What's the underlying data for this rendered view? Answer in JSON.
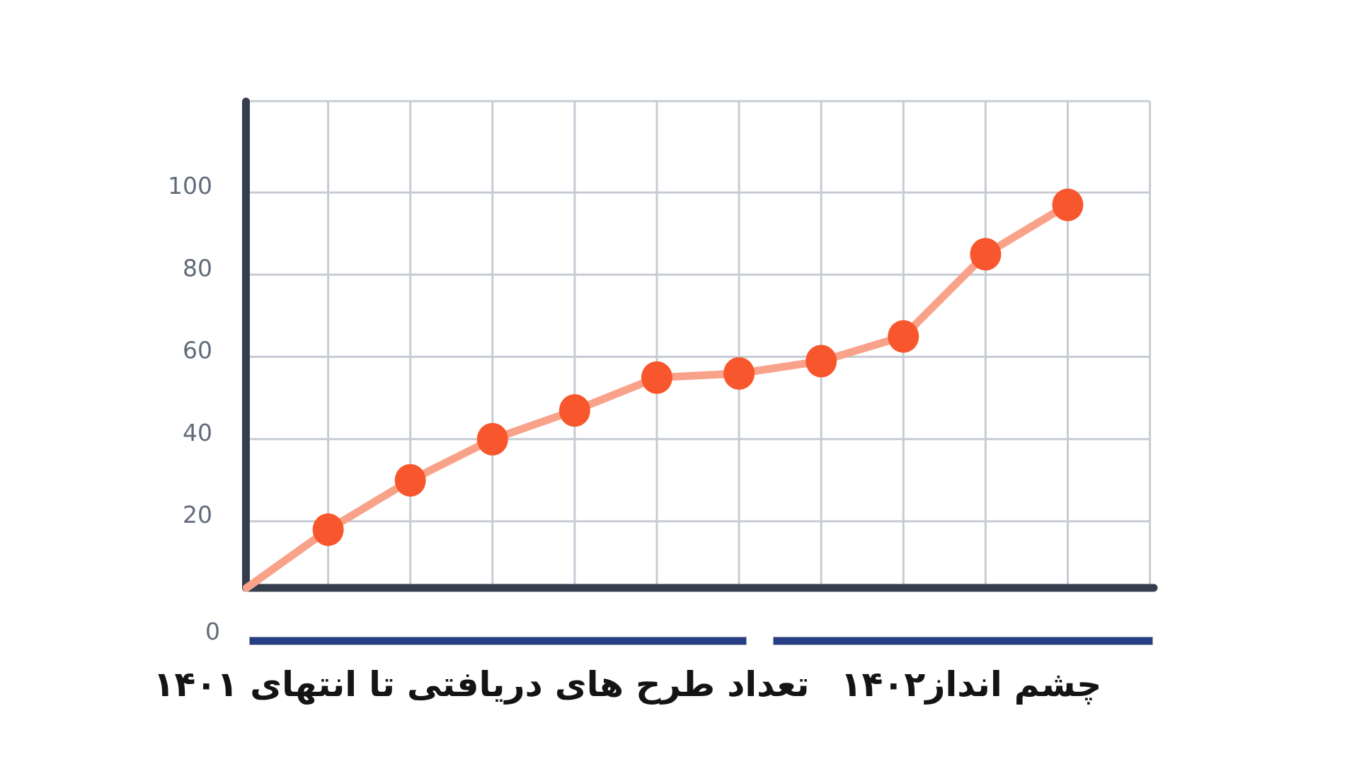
{
  "page": {
    "background": "#ffffff"
  },
  "y_axis": {
    "tick_labels": [
      "100",
      "80",
      "60",
      "40",
      "20",
      "0"
    ]
  },
  "chart_data": {
    "type": "line",
    "title": "",
    "x_index": [
      1,
      2,
      3,
      4,
      5,
      6,
      7,
      8,
      9,
      10
    ],
    "values": [
      18,
      30,
      40,
      47,
      55,
      56,
      59,
      65,
      85,
      97
    ],
    "line_starts_at_axis_origin": true,
    "yticks": [
      100,
      80,
      60,
      40,
      20,
      0
    ],
    "ylim": [
      0,
      122
    ],
    "grid": "on",
    "legend_position": "none",
    "segments": [
      {
        "label": "تعداد طرح های دریافتی تا انتهای ۱۴۰۱",
        "covers_points": [
          1,
          6
        ]
      },
      {
        "label": "چشم انداز۱۴۰۲",
        "covers_points": [
          7,
          10
        ]
      }
    ],
    "colors": {
      "line": "#f9a28a",
      "marker": "#f8562c",
      "axis": "#363e4e",
      "grid": "#c7ccd4",
      "tick_text": "#626b7a",
      "segment_bar": "#263e85",
      "segment_bar_border": "#9aa0ab",
      "segment_text": "#141414"
    }
  }
}
